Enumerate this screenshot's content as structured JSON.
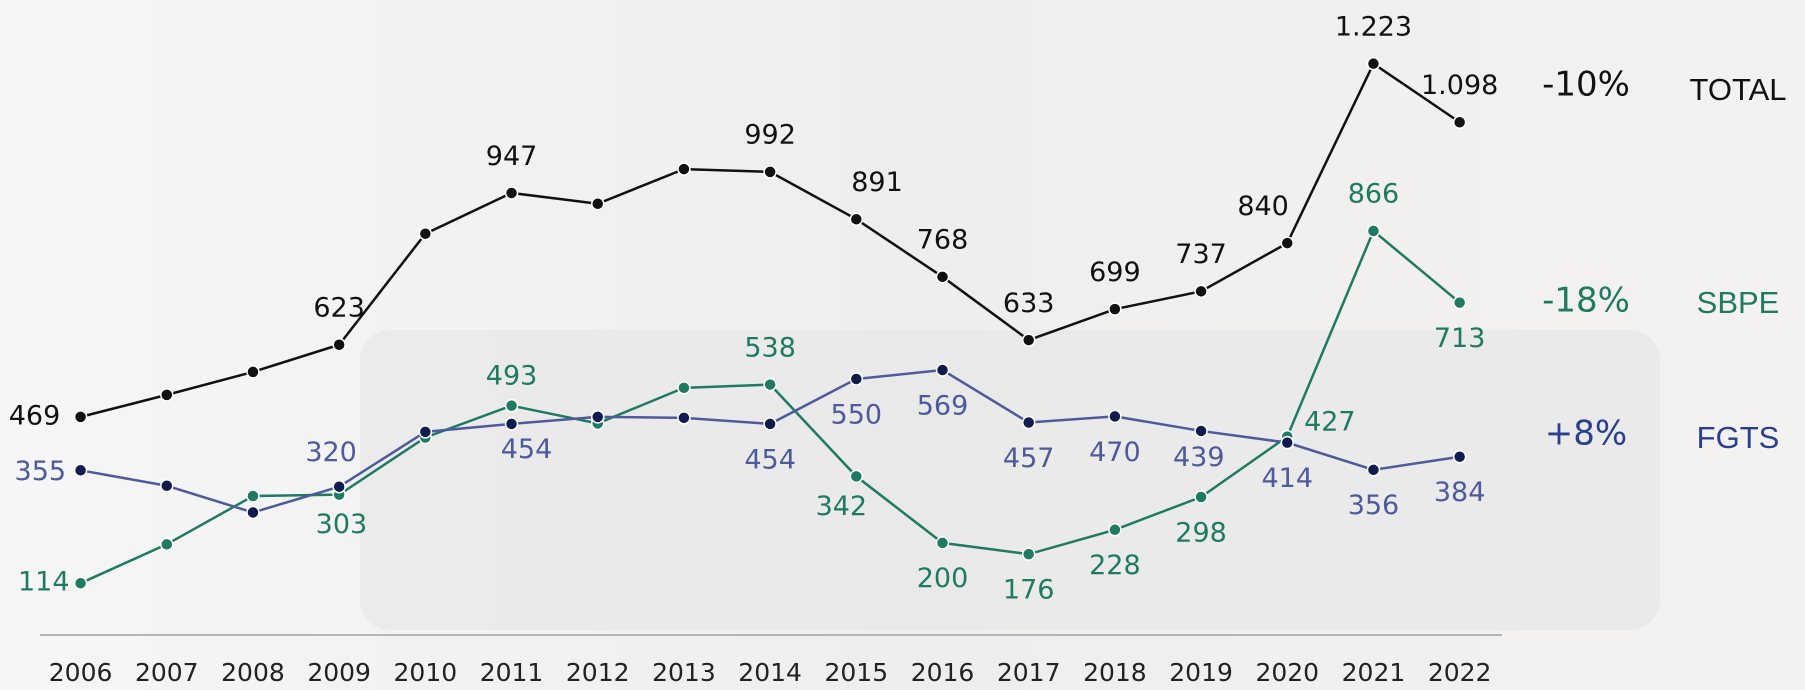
{
  "chart_data": {
    "type": "line",
    "categories": [
      "2006",
      "2007",
      "2008",
      "2009",
      "2010",
      "2011",
      "2012",
      "2013",
      "2014",
      "2015",
      "2016",
      "2017",
      "2018",
      "2019",
      "2020",
      "2021",
      "2022"
    ],
    "ylim": [
      0,
      1300
    ],
    "series": [
      {
        "name": "TOTAL",
        "change": "-10%",
        "color": "#111111",
        "values": [
          469,
          516,
          565,
          623,
          860,
          947,
          924,
          998,
          992,
          891,
          768,
          633,
          699,
          737,
          840,
          1223,
          1098
        ],
        "value_labels": [
          "469",
          null,
          null,
          "623",
          null,
          "947",
          null,
          null,
          "992",
          "891",
          "768",
          "633",
          "699",
          "737",
          "840",
          "1.223",
          "1.098"
        ]
      },
      {
        "name": "SBPE",
        "change": "-18%",
        "color": "#1f7a62",
        "values": [
          114,
          197,
          300,
          303,
          425,
          493,
          455,
          531,
          538,
          342,
          200,
          176,
          228,
          298,
          427,
          866,
          713
        ],
        "value_labels": [
          "114",
          null,
          null,
          "303",
          null,
          "493",
          null,
          null,
          "538",
          "342",
          "200",
          "176",
          "228",
          "298",
          "427",
          "866",
          "713"
        ]
      },
      {
        "name": "FGTS",
        "change": "+8%",
        "color": "#4d5a9c",
        "values": [
          355,
          322,
          265,
          320,
          437,
          454,
          469,
          467,
          454,
          550,
          569,
          457,
          470,
          439,
          414,
          356,
          384
        ],
        "value_labels": [
          "355",
          null,
          null,
          "320",
          null,
          "454",
          null,
          null,
          "454",
          "550",
          "569",
          "457",
          "470",
          "439",
          "414",
          "356",
          "384"
        ]
      }
    ]
  }
}
